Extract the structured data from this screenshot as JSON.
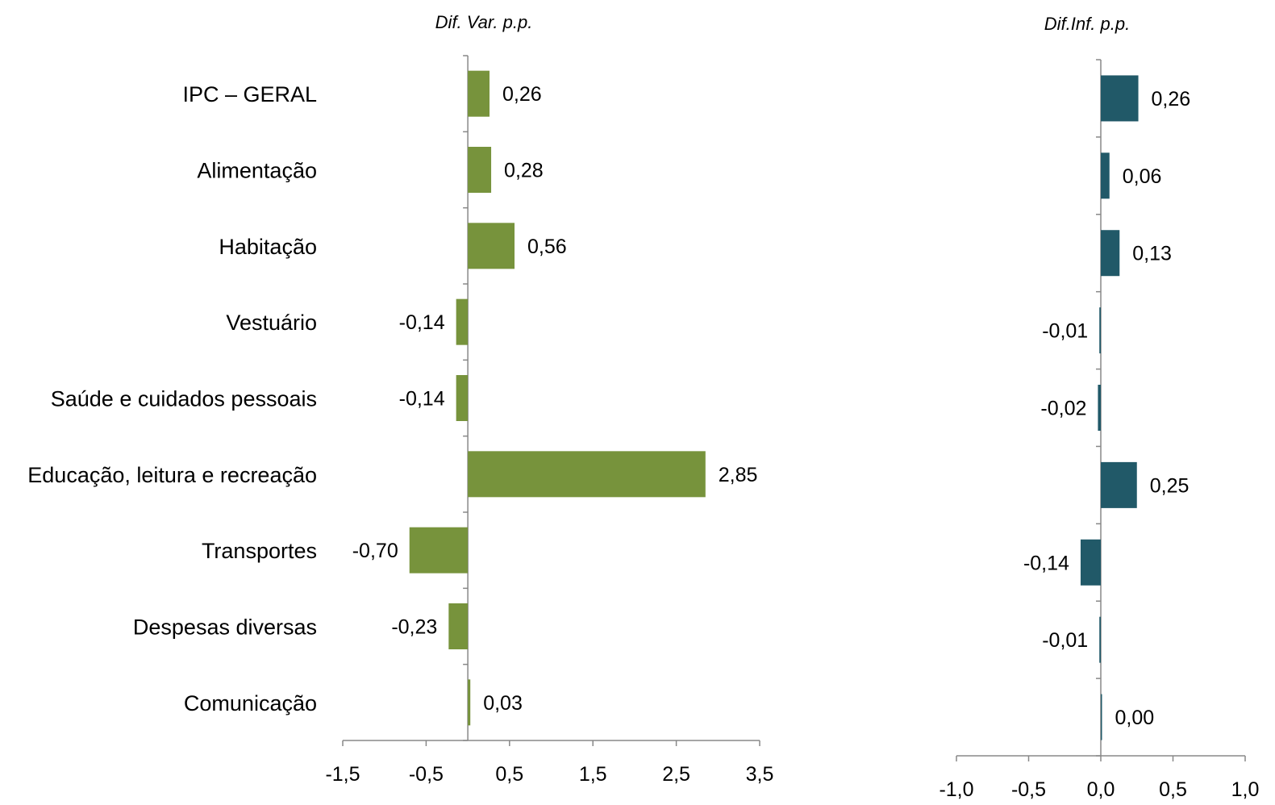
{
  "chart_data": [
    {
      "type": "bar",
      "orientation": "horizontal",
      "title": "Dif. Var. p.p.",
      "categories": [
        "IPC – GERAL",
        "Alimentação",
        "Habitação",
        "Vestuário",
        "Saúde e cuidados pessoais",
        "Educação, leitura e recreação",
        "Transportes",
        "Despesas diversas",
        "Comunicação"
      ],
      "values": [
        0.26,
        0.28,
        0.56,
        -0.14,
        -0.14,
        2.85,
        -0.7,
        -0.23,
        0.03
      ],
      "data_labels": [
        "0,26",
        "0,28",
        "0,56",
        "-0,14",
        "-0,14",
        "2,85",
        "-0,70",
        "-0,23",
        "0,03"
      ],
      "xlim": [
        -1.5,
        3.5
      ],
      "xticks": [
        -1.5,
        -0.5,
        0.5,
        1.5,
        2.5,
        3.5
      ],
      "xtick_labels": [
        "-1,5",
        "-0,5",
        "0,5",
        "1,5",
        "2,5",
        "3,5"
      ],
      "color": "#77933c",
      "grid": false,
      "legend": "none"
    },
    {
      "type": "bar",
      "orientation": "horizontal",
      "title": "Dif.Inf. p.p.",
      "categories": [
        "IPC – GERAL",
        "Alimentação",
        "Habitação",
        "Vestuário",
        "Saúde e cuidados pessoais",
        "Educação, leitura e recreação",
        "Transportes",
        "Despesas diversas",
        "Comunicação"
      ],
      "values": [
        0.26,
        0.06,
        0.13,
        -0.01,
        -0.02,
        0.25,
        -0.14,
        -0.01,
        0.0
      ],
      "data_labels": [
        "0,26",
        "0,06",
        "0,13",
        "-0,01",
        "-0,02",
        "0,25",
        "-0,14",
        "-0,01",
        "0,00"
      ],
      "xlim": [
        -1.0,
        1.0
      ],
      "xticks": [
        -1.0,
        -0.5,
        0.0,
        0.5,
        1.0
      ],
      "xtick_labels": [
        "-1,0",
        "-0,5",
        "0,0",
        "0,5",
        "1,0"
      ],
      "color": "#215968",
      "grid": false,
      "legend": "none"
    }
  ]
}
